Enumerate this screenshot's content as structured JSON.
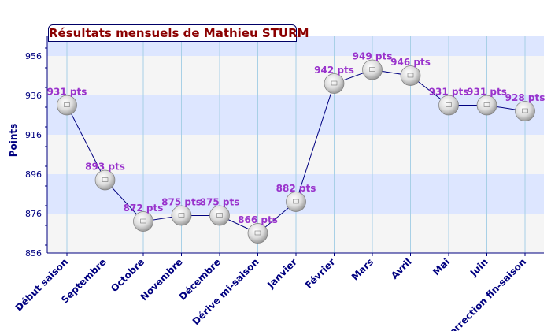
{
  "chart_data": {
    "type": "line",
    "title": "Résultats mensuels de Mathieu STURM",
    "xlabel": "",
    "ylabel": "Points",
    "ylim": [
      856,
      966
    ],
    "yticks": [
      "856",
      "876",
      "896",
      "916",
      "936",
      "956"
    ],
    "grid": true,
    "categories": [
      "Début saison",
      "Septembre",
      "Octobre",
      "Novembre",
      "Décembre",
      "Dérive mi-saison",
      "Janvier",
      "Février",
      "Mars",
      "Avril",
      "Mai",
      "Juin",
      "Correction fin-saison"
    ],
    "values": [
      931,
      893,
      872,
      875,
      875,
      866,
      882,
      942,
      949,
      946,
      931,
      931,
      928
    ],
    "data_labels": [
      "931 pts",
      "893 pts",
      "872 pts",
      "875 pts",
      "875 pts",
      "866 pts",
      "882 pts",
      "942 pts",
      "949 pts",
      "946 pts",
      "931 pts",
      "931 pts",
      "928 pts"
    ],
    "colors": {
      "line": "#000080",
      "label": "#9933cc",
      "title": "#8b0000",
      "axis": "#000080",
      "band_blue": "#dde6ff",
      "band_gray": "#f5f5f5",
      "grid": "#a8d0e6"
    }
  }
}
